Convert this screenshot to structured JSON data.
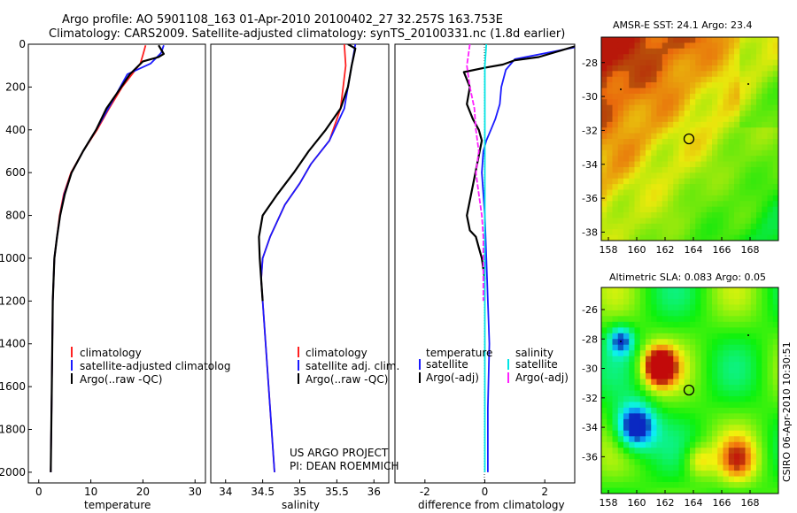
{
  "header": {
    "line1": "Argo profile: AO 5901108_163 01-Apr-2010 20100402_27 32.257S 163.753E",
    "line2": "Climatology: CARS2009. Satellite-adjusted climatology: synTS_20100331.nc (1.8d earlier)"
  },
  "credit": "CSIRO 06-Apr-2010 10:30:51",
  "colors": {
    "climatology": "#ff2020",
    "satellite": "#1a1aff",
    "argo": "#000000",
    "satellite_sal": "#00e5e5",
    "argo_sal": "#ff20ff"
  },
  "chart_data": [
    {
      "type": "line",
      "name": "temperature_profile",
      "xlabel": "temperature",
      "ylabel": "",
      "xlim": [
        -2,
        32
      ],
      "ylim": [
        2050,
        0
      ],
      "xticks": [
        0,
        10,
        20,
        30
      ],
      "yticks": [
        0,
        200,
        400,
        600,
        800,
        1000,
        1200,
        1400,
        1600,
        1800,
        2000
      ],
      "legend": [
        "climatology",
        "satellite-adjusted climatolog",
        "Argo(..raw -QC)"
      ],
      "series": [
        {
          "name": "climatology",
          "color": "#ff2020",
          "x": [
            20.5,
            20.0,
            19.5,
            16.0,
            13.5,
            11.2,
            8.5,
            6.2,
            4.8,
            4.0,
            3.5,
            3.0,
            2.7,
            2.5,
            2.3
          ],
          "y": [
            5,
            50,
            90,
            200,
            300,
            400,
            500,
            600,
            700,
            800,
            900,
            1000,
            1200,
            1600,
            2000
          ]
        },
        {
          "name": "satellite-adjusted climatology",
          "color": "#1a1aff",
          "x": [
            24.0,
            23.5,
            21.5,
            17.0,
            14.5,
            12.2,
            11.0,
            8.5,
            6.3,
            4.9,
            4.1,
            3.5,
            3.0,
            2.7,
            2.5,
            2.3
          ],
          "y": [
            5,
            40,
            90,
            140,
            250,
            350,
            400,
            500,
            600,
            700,
            800,
            900,
            1000,
            1200,
            1600,
            2000
          ]
        },
        {
          "name": "Argo(..raw -QC)",
          "color": "#000000",
          "x": [
            23.0,
            24.0,
            23.0,
            20.0,
            17.5,
            15.0,
            13.0,
            11.0,
            8.5,
            6.3,
            5.0,
            4.1,
            3.5,
            3.0,
            2.7,
            2.5,
            2.3
          ],
          "y": [
            5,
            45,
            60,
            80,
            140,
            230,
            300,
            400,
            500,
            600,
            700,
            800,
            900,
            1000,
            1200,
            1600,
            2000
          ]
        }
      ]
    },
    {
      "type": "line",
      "name": "salinity_profile",
      "xlabel": "salinity",
      "xlim": [
        33.8,
        36.2
      ],
      "ylim": [
        2050,
        0
      ],
      "xticks": [
        34,
        34.5,
        35,
        35.5,
        36
      ],
      "legend": [
        "climatology",
        "satellite adj. clim.",
        "Argo(..raw -QC)"
      ],
      "annotation": [
        "US ARGO PROJECT",
        "PI: DEAN ROEMMICH"
      ],
      "series": [
        {
          "name": "climatology",
          "color": "#ff2020",
          "x": [
            35.6,
            35.62,
            35.55,
            35.4,
            35.15,
            35.0,
            34.8,
            34.6,
            34.5,
            34.48,
            34.52,
            34.6,
            34.66
          ],
          "y": [
            0,
            100,
            300,
            450,
            560,
            650,
            750,
            900,
            1000,
            1100,
            1300,
            1700,
            2000
          ]
        },
        {
          "name": "satellite adj. clim.",
          "color": "#1a1aff",
          "x": [
            35.75,
            35.7,
            35.6,
            35.4,
            35.15,
            35.0,
            34.8,
            34.6,
            34.5,
            34.48,
            34.52,
            34.6,
            34.66
          ],
          "y": [
            0,
            100,
            300,
            450,
            560,
            650,
            750,
            900,
            1000,
            1100,
            1300,
            1700,
            2000
          ]
        },
        {
          "name": "Argo(..raw -QC)",
          "color": "#000000",
          "x": [
            35.65,
            35.75,
            35.7,
            35.65,
            35.55,
            35.35,
            35.12,
            34.92,
            34.7,
            34.5,
            34.45,
            34.46,
            34.5
          ],
          "y": [
            0,
            20,
            100,
            200,
            300,
            400,
            500,
            600,
            700,
            800,
            900,
            1000,
            1200
          ]
        }
      ]
    },
    {
      "type": "line",
      "name": "difference_profile",
      "xlabel": "difference from climatology",
      "xlim": [
        -3,
        3
      ],
      "ylim": [
        2050,
        0
      ],
      "xticks": [
        -2,
        0,
        2
      ],
      "legend": [
        "temperature",
        "satellite",
        "Argo(-adj)",
        "salinity",
        "satellite",
        "Argo(-adj)"
      ],
      "series": [
        {
          "name": "temperature satellite",
          "color": "#1a1aff",
          "x": [
            3.0,
            1.0,
            0.7,
            0.55,
            0.5,
            0.35,
            0.2,
            0.05,
            -0.05,
            -0.1,
            0.0,
            0.05,
            0.1,
            0.15,
            0.1,
            0.1
          ],
          "y": [
            15,
            70,
            120,
            200,
            280,
            350,
            400,
            450,
            500,
            600,
            800,
            1000,
            1200,
            1400,
            1700,
            2000
          ]
        },
        {
          "name": "temperature Argo(-adj)",
          "color": "#000000",
          "x": [
            3.0,
            2.4,
            1.8,
            1.0,
            0.6,
            0.0,
            -0.7,
            -0.5,
            -0.6,
            -0.4,
            -0.2,
            -0.1,
            -0.6,
            -0.5,
            -0.3,
            -0.2,
            -0.1,
            0.0
          ],
          "y": [
            10,
            35,
            60,
            75,
            95,
            110,
            130,
            200,
            280,
            350,
            400,
            450,
            800,
            870,
            900,
            950,
            1000,
            1100
          ]
        },
        {
          "name": "salinity satellite",
          "color": "#00e5e5",
          "x": [
            0.05,
            0.0,
            0.0,
            0.0,
            0.0,
            0.0,
            0.0
          ],
          "y": [
            0,
            100,
            400,
            800,
            1200,
            1600,
            2000
          ]
        },
        {
          "name": "salinity Argo(-adj)",
          "color": "#ff20ff",
          "x": [
            -0.5,
            -0.6,
            -0.5,
            -0.35,
            -0.3,
            -0.2,
            -0.3,
            -0.2,
            -0.1,
            -0.05,
            -0.05,
            -0.05
          ],
          "y": [
            0,
            100,
            200,
            300,
            400,
            500,
            600,
            700,
            800,
            900,
            1000,
            1200
          ]
        }
      ]
    },
    {
      "type": "heatmap",
      "name": "sst_map",
      "title": "AMSR-E SST: 24.1 Argo: 23.4",
      "xlim": [
        157.5,
        170
      ],
      "ylim": [
        -38.5,
        -26.5
      ],
      "xticks": [
        158,
        160,
        162,
        164,
        166,
        168
      ],
      "yticks": [
        -28,
        -30,
        -32,
        -34,
        -36,
        -38
      ],
      "marker": {
        "lon": 163.75,
        "lat": -32.26
      }
    },
    {
      "type": "heatmap",
      "name": "sla_map",
      "title": "Altimetric SLA: 0.083 Argo: 0.05",
      "xlim": [
        157.5,
        170
      ],
      "ylim": [
        -38.5,
        -24.5
      ],
      "xticks": [
        158,
        160,
        162,
        164,
        166,
        168
      ],
      "yticks": [
        -26,
        -28,
        -30,
        -32,
        -34,
        -36
      ],
      "marker": {
        "lon": 163.75,
        "lat": -32.26
      }
    }
  ]
}
